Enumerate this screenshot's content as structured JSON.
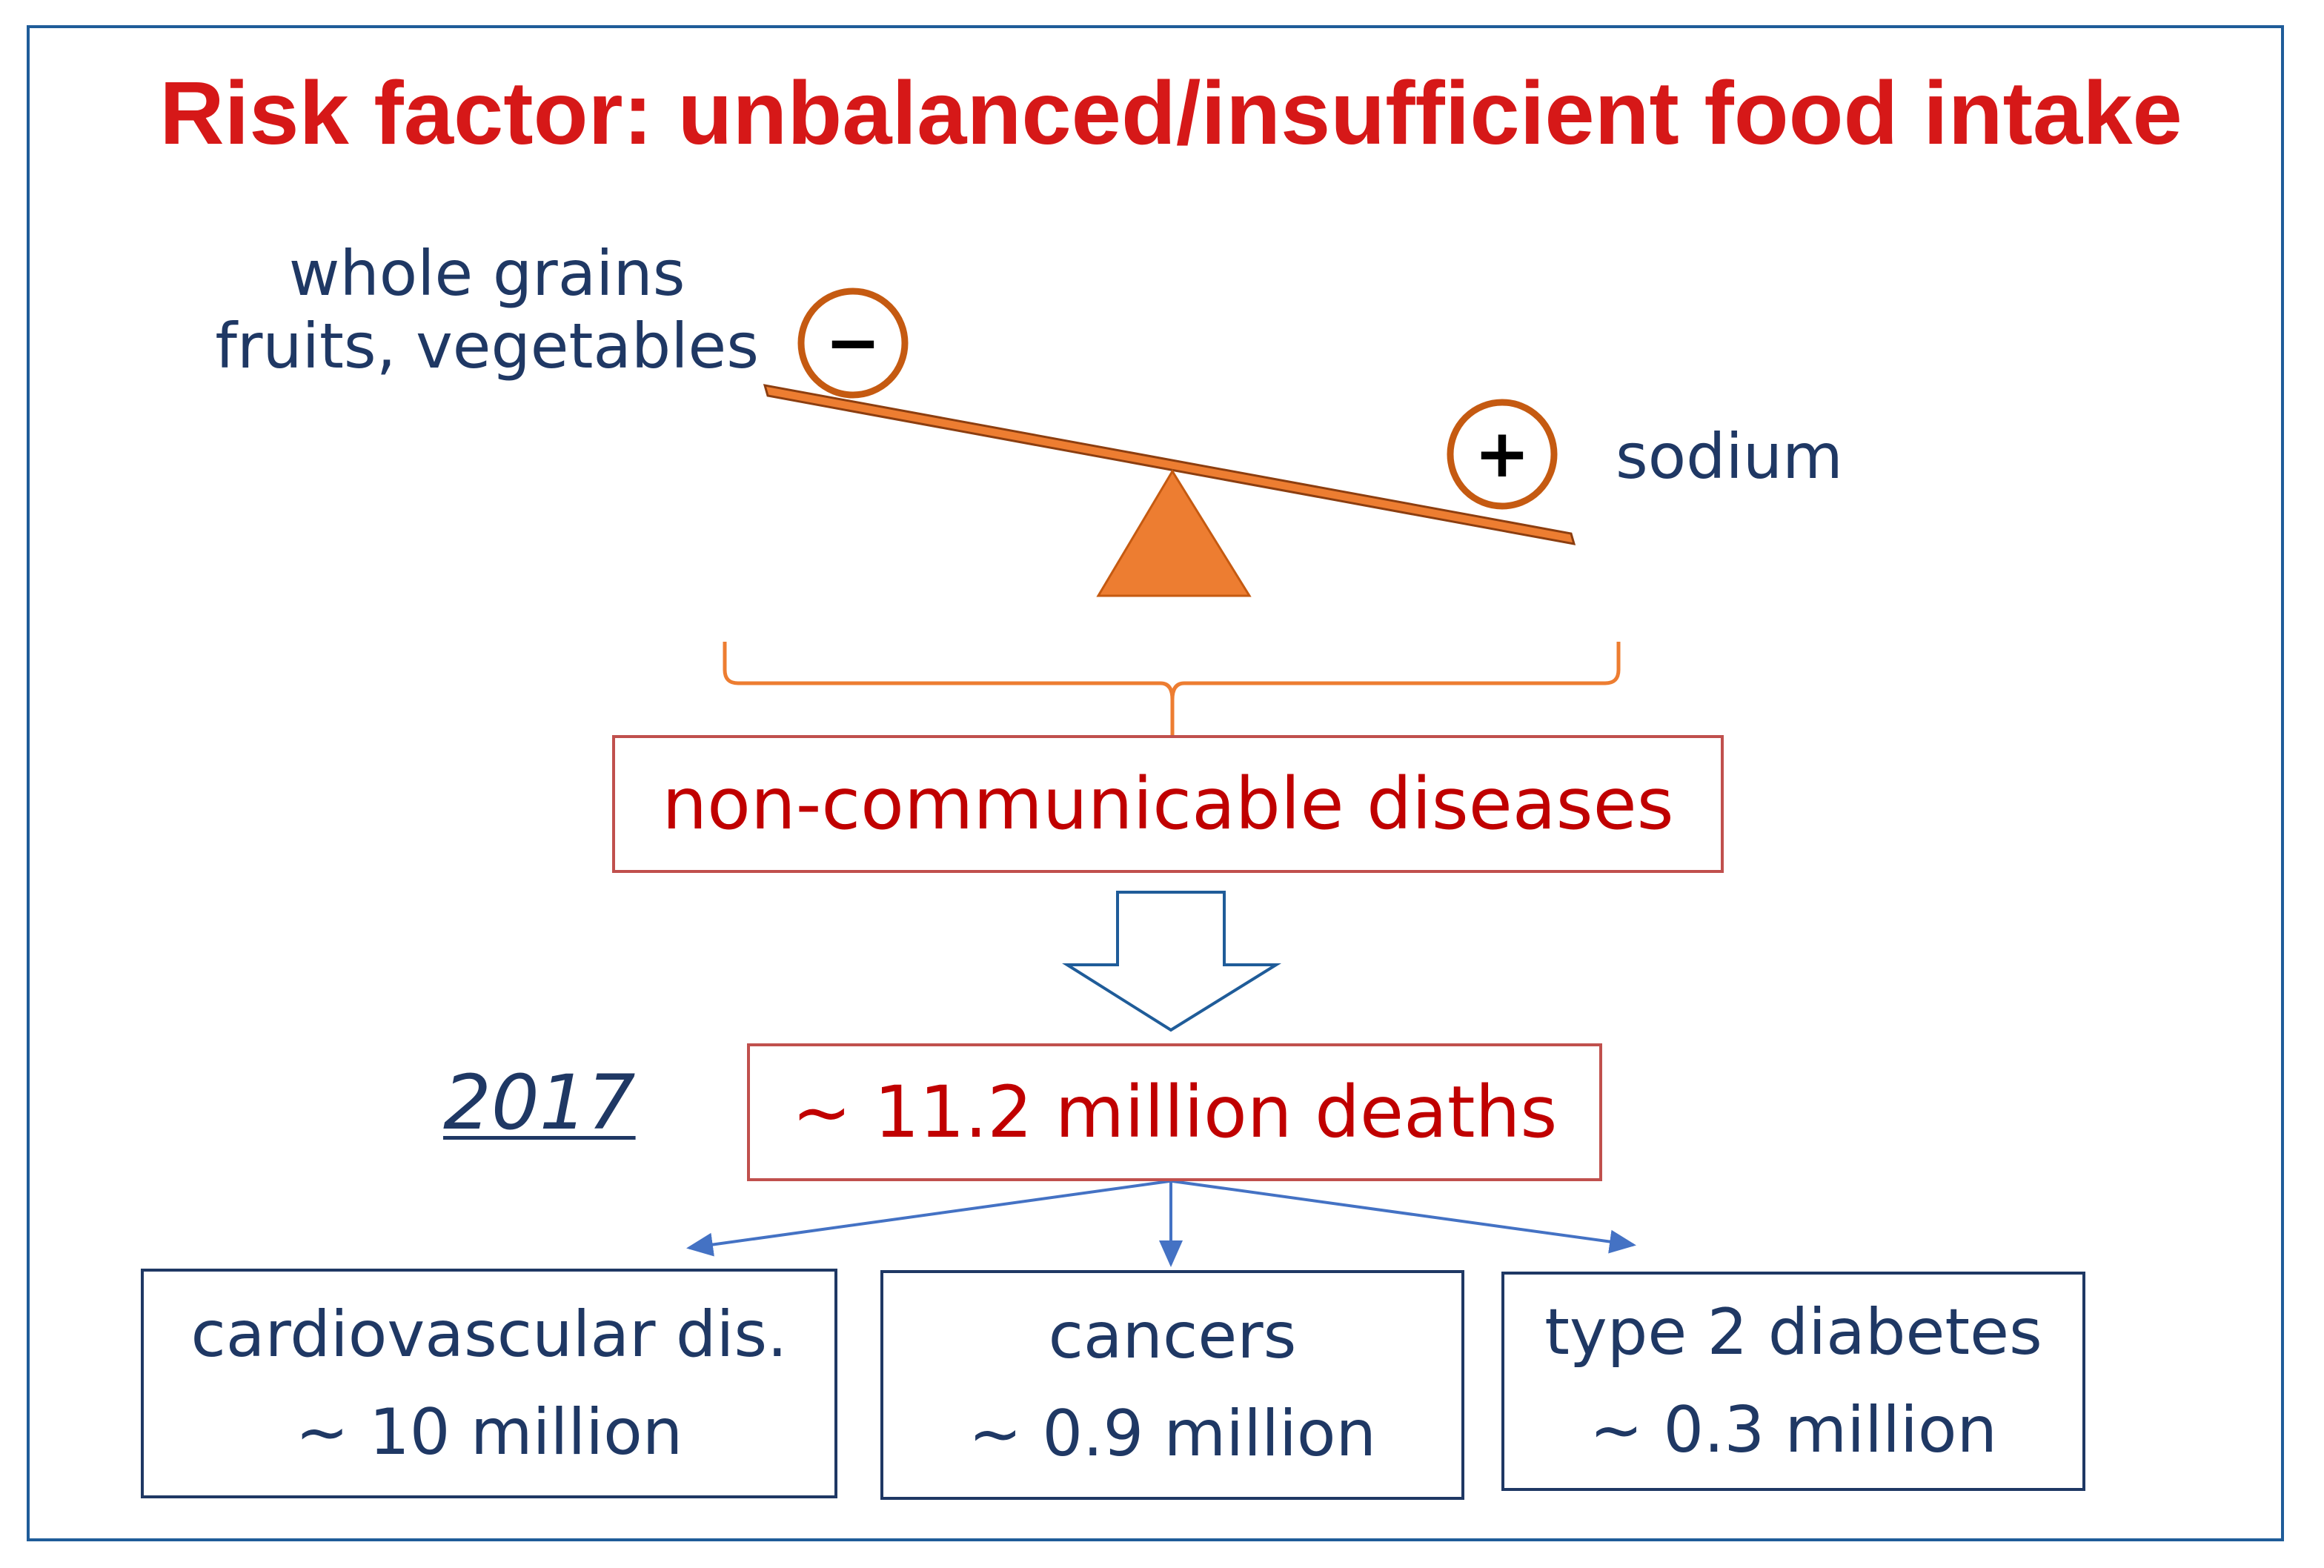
{
  "title": "Risk factor: unbalanced/insufficient food intake",
  "balance": {
    "left_label_line1": "whole grains",
    "left_label_line2": "fruits, vegetables",
    "left_sign": "−",
    "right_sign": "+",
    "right_label": "sodium",
    "colors": {
      "beam": "#ed7d31",
      "fulcrum": "#ed7d31",
      "circle_stroke": "#c55a11"
    }
  },
  "ncd": {
    "label": "non-communicable diseases"
  },
  "year": "2017",
  "deaths": {
    "label": "~ 11.2 million deaths"
  },
  "breakdown": [
    {
      "name": "cardiovascular dis.",
      "value": "~ 10 million"
    },
    {
      "name": "cancers",
      "value": "~ 0.9 million"
    },
    {
      "name": "type 2 diabetes",
      "value": "~ 0.3 million"
    }
  ],
  "colors": {
    "title": "#d61818",
    "frame": "#1f5c99",
    "red_box_border": "#c0504d",
    "red_text": "#c00000",
    "navy_text": "#1f3864",
    "arrows": "#4472c4"
  }
}
